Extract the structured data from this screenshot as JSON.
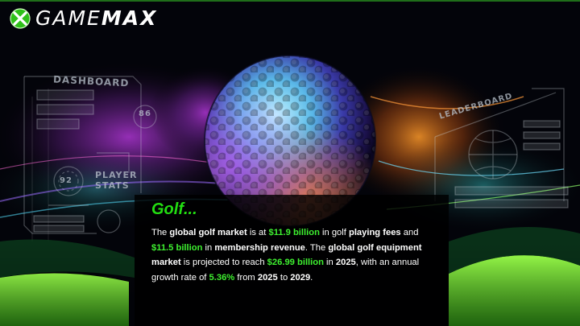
{
  "brand": {
    "name_part1": "GAME",
    "name_part2": "MAX"
  },
  "hud": {
    "dashboard": "DASHBOARD",
    "speed": "86",
    "percent": "92",
    "player_stats_line1": "PLAYER",
    "player_stats_line2": "STATS",
    "leaderboard": "LEADERBOARD"
  },
  "heading": "Golf...",
  "paragraph": [
    {
      "t": "The "
    },
    {
      "t": "global golf market",
      "s": "b"
    },
    {
      "t": " is at "
    },
    {
      "t": "$11.9 billion",
      "s": "hl"
    },
    {
      "t": " in golf "
    },
    {
      "t": "playing fees",
      "s": "b"
    },
    {
      "t": " and "
    },
    {
      "t": "$11.5 billion",
      "s": "hl"
    },
    {
      "t": " in "
    },
    {
      "t": "membership revenue",
      "s": "b"
    },
    {
      "t": ". The "
    },
    {
      "t": "global golf equipment market",
      "s": "b"
    },
    {
      "t": " is projected to reach "
    },
    {
      "t": "$26.99 billion",
      "s": "hl"
    },
    {
      "t": " in "
    },
    {
      "t": "2025",
      "s": "b"
    },
    {
      "t": ", with an annual growth rate of "
    },
    {
      "t": "5.36%",
      "s": "hl"
    },
    {
      "t": " from "
    },
    {
      "t": "2025",
      "s": "b"
    },
    {
      "t": " to "
    },
    {
      "t": "2029",
      "s": "b"
    },
    {
      "t": "."
    }
  ],
  "colors": {
    "accent": "#3ef030",
    "heading": "#22dd11",
    "background": "#020308"
  }
}
